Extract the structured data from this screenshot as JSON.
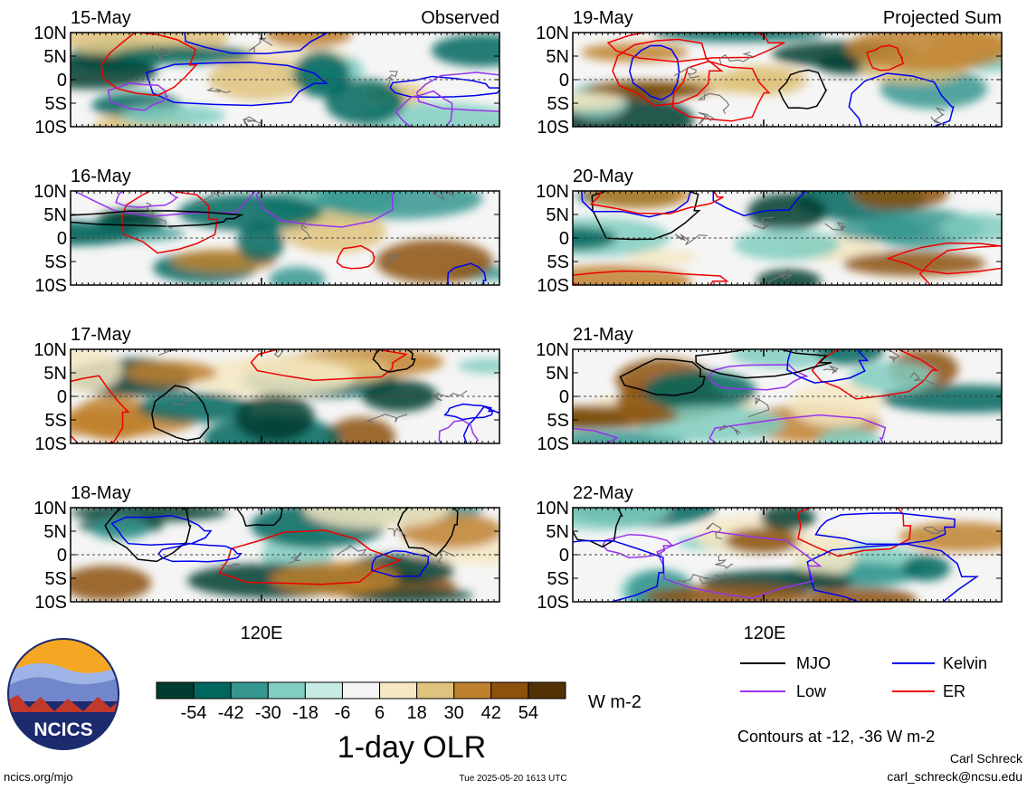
{
  "chart_data": {
    "type": "heatmap",
    "title": "1-day OLR",
    "units": "W m-2",
    "colorbar": {
      "ticks": [
        -54,
        -42,
        -30,
        -18,
        -6,
        6,
        18,
        30,
        42,
        54
      ],
      "colors": [
        "#003c30",
        "#01665e",
        "#35978f",
        "#80cdc1",
        "#c7eae5",
        "#f5f5f5",
        "#f6e8c3",
        "#dfc27d",
        "#bf812d",
        "#8c510a",
        "#543005"
      ]
    },
    "axes": {
      "lat_ticks": [
        "10N",
        "5N",
        "0",
        "5S",
        "10S"
      ],
      "ylim": [
        -10,
        10
      ],
      "lon_label": "120E"
    },
    "columns": [
      {
        "label": "Observed",
        "panels": [
          "15-May",
          "16-May",
          "17-May",
          "18-May"
        ]
      },
      {
        "label": "Projected Sum",
        "panels": [
          "19-May",
          "20-May",
          "21-May",
          "22-May"
        ]
      }
    ],
    "legend": [
      {
        "name": "MJO",
        "color": "#000000"
      },
      {
        "name": "Kelvin",
        "color": "#0000ee"
      },
      {
        "name": "Low",
        "color": "#9933ee"
      },
      {
        "name": "ER",
        "color": "#ee0000"
      }
    ],
    "contour_note": "Contours at -12, -36 W m-2",
    "contour_levels": [
      -12,
      -36
    ]
  },
  "logo": {
    "text": "NCICS"
  },
  "footer": {
    "url": "ncics.org/mjo",
    "timestamp": "Tue 2025-05-20 1613 UTC",
    "author": "Carl Schreck",
    "email": "carl_schreck@ncsu.edu"
  }
}
